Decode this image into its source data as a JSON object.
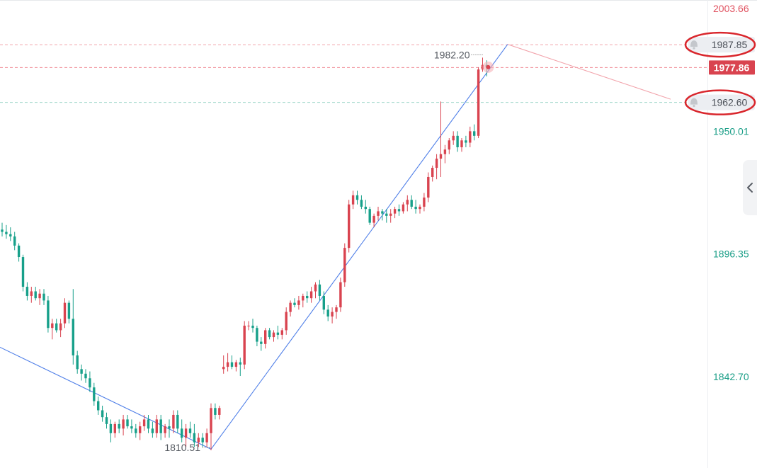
{
  "chart_data": {
    "type": "candlestick",
    "y_axis": {
      "range": [
        1800,
        2010
      ],
      "ticks": [
        {
          "value": 2003.66,
          "label": "2003.66",
          "color": "#e05260"
        },
        {
          "value": 1950.01,
          "label": "1950.01",
          "color": "#1a9e87"
        },
        {
          "value": 1896.35,
          "label": "1896.35",
          "color": "#1a9e87"
        },
        {
          "value": 1842.7,
          "label": "1842.70",
          "color": "#1a9e87"
        }
      ]
    },
    "price_lines": [
      {
        "value": 1987.85,
        "label": "1987.85",
        "style": "alert",
        "line_color": "#f2a7ae",
        "circled": true
      },
      {
        "value": 1977.86,
        "label": "1977.86",
        "style": "current",
        "line_color": "#f08c96",
        "badge_color": "#d9434f"
      },
      {
        "value": 1962.6,
        "label": "1962.60",
        "style": "alert",
        "line_color": "#9fd7c9",
        "circled": true
      }
    ],
    "annotations": [
      {
        "type": "high",
        "value": 1982.2,
        "label": "1982.20"
      },
      {
        "type": "low",
        "value": 1810.51,
        "label": "1810.51"
      }
    ],
    "trend_lines": [
      {
        "color": "#4f7fe8",
        "points": [
          [
            -1,
            1856
          ],
          [
            50,
            1811
          ],
          [
            121,
            1988
          ]
        ]
      },
      {
        "color": "#f2a3ab",
        "points": [
          [
            121,
            1988
          ],
          [
            160,
            1964
          ]
        ]
      }
    ],
    "candles": [
      [
        1907,
        1910,
        1904,
        1906
      ],
      [
        1906,
        1909,
        1903,
        1905
      ],
      [
        1905,
        1908,
        1902,
        1904
      ],
      [
        1904,
        1906,
        1898,
        1900
      ],
      [
        1900,
        1901,
        1893,
        1895
      ],
      [
        1895,
        1896,
        1880,
        1882
      ],
      [
        1882,
        1884,
        1876,
        1878
      ],
      [
        1878,
        1882,
        1875,
        1880
      ],
      [
        1880,
        1882,
        1876,
        1877
      ],
      [
        1877,
        1881,
        1874,
        1879
      ],
      [
        1879,
        1881,
        1874,
        1876
      ],
      [
        1876,
        1878,
        1862,
        1864
      ],
      [
        1864,
        1868,
        1859,
        1866
      ],
      [
        1866,
        1868,
        1862,
        1863
      ],
      [
        1863,
        1868,
        1860,
        1866
      ],
      [
        1866,
        1877,
        1864,
        1875
      ],
      [
        1875,
        1876,
        1866,
        1868
      ],
      [
        1868,
        1881,
        1848,
        1852
      ],
      [
        1852,
        1854,
        1844,
        1846
      ],
      [
        1846,
        1848,
        1841,
        1844
      ],
      [
        1844,
        1846,
        1840,
        1842
      ],
      [
        1842,
        1845,
        1836,
        1838
      ],
      [
        1838,
        1840,
        1830,
        1832
      ],
      [
        1832,
        1834,
        1826,
        1828
      ],
      [
        1828,
        1830,
        1823,
        1825
      ],
      [
        1825,
        1827,
        1820,
        1822
      ],
      [
        1822,
        1824,
        1814,
        1818
      ],
      [
        1818,
        1823,
        1816,
        1822
      ],
      [
        1822,
        1824,
        1818,
        1820
      ],
      [
        1820,
        1826,
        1817,
        1824
      ],
      [
        1824,
        1826,
        1820,
        1821
      ],
      [
        1821,
        1824,
        1818,
        1820
      ],
      [
        1820,
        1822,
        1816,
        1818
      ],
      [
        1818,
        1823,
        1815,
        1821
      ],
      [
        1821,
        1826,
        1819,
        1824
      ],
      [
        1824,
        1826,
        1818,
        1820
      ],
      [
        1820,
        1823,
        1816,
        1818
      ],
      [
        1818,
        1826,
        1816,
        1824
      ],
      [
        1824,
        1826,
        1815,
        1818
      ],
      [
        1818,
        1822,
        1816,
        1821
      ],
      [
        1821,
        1824,
        1816,
        1820
      ],
      [
        1820,
        1828,
        1818,
        1826
      ],
      [
        1826,
        1828,
        1818,
        1820
      ],
      [
        1820,
        1824,
        1814,
        1816
      ],
      [
        1816,
        1822,
        1812,
        1820
      ],
      [
        1820,
        1823,
        1816,
        1818
      ],
      [
        1818,
        1822,
        1812,
        1814
      ],
      [
        1814,
        1818,
        1812,
        1816
      ],
      [
        1816,
        1818,
        1812,
        1814
      ],
      [
        1814,
        1820,
        1812,
        1818
      ],
      [
        1818,
        1831,
        1810.51,
        1829
      ],
      [
        1829,
        1831,
        1824,
        1826
      ],
      [
        1826,
        1830,
        1824,
        1829
      ],
      [
        1846,
        1852,
        1844,
        1847
      ],
      [
        1847,
        1853,
        1845,
        1849
      ],
      [
        1849,
        1852,
        1846,
        1847
      ],
      [
        1847,
        1850,
        1845,
        1849
      ],
      [
        1849,
        1851,
        1843,
        1848
      ],
      [
        1848,
        1867,
        1846,
        1865
      ],
      [
        1865,
        1867,
        1863,
        1865
      ],
      [
        1865,
        1868,
        1862,
        1864
      ],
      [
        1864,
        1865,
        1856,
        1858
      ],
      [
        1858,
        1860,
        1854,
        1857
      ],
      [
        1857,
        1864,
        1855,
        1863
      ],
      [
        1863,
        1864,
        1859,
        1860
      ],
      [
        1860,
        1863,
        1858,
        1862
      ],
      [
        1862,
        1865,
        1859,
        1861
      ],
      [
        1861,
        1864,
        1859,
        1863
      ],
      [
        1863,
        1873,
        1861,
        1871
      ],
      [
        1871,
        1876,
        1869,
        1875
      ],
      [
        1875,
        1877,
        1873,
        1874
      ],
      [
        1874,
        1878,
        1872,
        1876
      ],
      [
        1876,
        1879,
        1873,
        1878
      ],
      [
        1878,
        1880,
        1875,
        1877
      ],
      [
        1877,
        1882,
        1875,
        1880
      ],
      [
        1880,
        1884,
        1877,
        1883
      ],
      [
        1883,
        1885,
        1876,
        1878
      ],
      [
        1878,
        1880,
        1870,
        1872
      ],
      [
        1872,
        1874,
        1867,
        1869
      ],
      [
        1869,
        1873,
        1866,
        1871
      ],
      [
        1871,
        1874,
        1868,
        1873
      ],
      [
        1873,
        1886,
        1871,
        1884
      ],
      [
        1884,
        1901,
        1882,
        1899
      ],
      [
        1899,
        1920,
        1897,
        1918
      ],
      [
        1918,
        1924,
        1916,
        1922
      ],
      [
        1922,
        1924,
        1918,
        1920
      ],
      [
        1920,
        1922,
        1916,
        1917
      ],
      [
        1917,
        1920,
        1914,
        1916
      ],
      [
        1916,
        1917,
        1909,
        1910
      ],
      [
        1910,
        1914,
        1908,
        1913
      ],
      [
        1913,
        1917,
        1911,
        1915
      ],
      [
        1915,
        1916,
        1911,
        1914
      ],
      [
        1914,
        1916,
        1910,
        1913
      ],
      [
        1913,
        1916,
        1910,
        1914
      ],
      [
        1914,
        1917,
        1912,
        1916
      ],
      [
        1916,
        1918,
        1913,
        1915
      ],
      [
        1915,
        1919,
        1914,
        1918
      ],
      [
        1918,
        1922,
        1915,
        1920
      ],
      [
        1920,
        1922,
        1916,
        1917
      ],
      [
        1917,
        1920,
        1914,
        1916
      ],
      [
        1916,
        1918,
        1914,
        1917
      ],
      [
        1917,
        1923,
        1915,
        1921
      ],
      [
        1921,
        1932,
        1919,
        1930
      ],
      [
        1930,
        1935,
        1928,
        1934
      ],
      [
        1934,
        1940,
        1929,
        1938
      ],
      [
        1938,
        1963,
        1930,
        1940
      ],
      [
        1940,
        1944,
        1936,
        1942
      ],
      [
        1942,
        1947,
        1940,
        1946
      ],
      [
        1946,
        1950,
        1944,
        1948
      ],
      [
        1948,
        1950,
        1941,
        1943
      ],
      [
        1943,
        1947,
        1941,
        1946
      ],
      [
        1946,
        1948,
        1943,
        1945
      ],
      [
        1945,
        1952,
        1943,
        1950
      ],
      [
        1950,
        1953,
        1946,
        1948
      ],
      [
        1948,
        1978,
        1947,
        1977
      ],
      [
        1977,
        1982.2,
        1976,
        1979
      ],
      [
        1979,
        1981,
        1974,
        1978
      ]
    ]
  },
  "ui": {
    "collapse_icon": "chevron-left-icon"
  }
}
